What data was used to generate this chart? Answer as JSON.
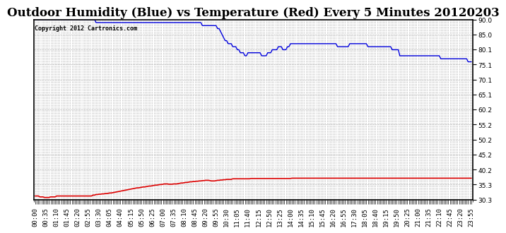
{
  "title": "Outdoor Humidity (Blue) vs Temperature (Red) Every 5 Minutes 20120203",
  "copyright_text": "Copyright 2012 Cartronics.com",
  "ylim_min": 30.3,
  "ylim_max": 90.0,
  "yticks": [
    30.3,
    35.3,
    40.2,
    45.2,
    50.2,
    55.2,
    60.2,
    65.1,
    70.1,
    75.1,
    80.1,
    85.0,
    90.0
  ],
  "background_color": "#ffffff",
  "grid_color": "#b0b0b0",
  "blue_color": "#0000dd",
  "red_color": "#dd0000",
  "title_fontsize": 12,
  "copyright_fontsize": 6,
  "tick_fontsize": 6.5,
  "label_every": 7,
  "humidity_data": [
    90,
    90,
    90,
    90,
    90,
    90,
    90,
    90,
    90,
    90,
    90,
    90,
    90,
    90,
    90,
    90,
    90,
    90,
    90,
    90,
    90,
    90,
    90,
    90,
    90,
    90,
    90,
    90,
    90,
    90,
    90,
    90,
    90,
    90,
    90,
    90,
    90,
    90,
    90,
    90,
    89,
    89,
    89,
    89,
    89,
    89,
    89,
    89,
    89,
    89,
    89,
    89,
    89,
    89,
    89,
    89,
    89,
    89,
    89,
    89,
    89,
    89,
    89,
    89,
    89,
    89,
    89,
    89,
    89,
    89,
    89,
    89,
    89,
    89,
    89,
    89,
    89,
    89,
    89,
    89,
    89,
    89,
    89,
    89,
    89,
    89,
    89,
    89,
    89,
    89,
    89,
    89,
    89,
    89,
    89,
    89,
    89,
    89,
    89,
    89,
    89,
    89,
    89,
    89,
    89,
    89,
    89,
    89,
    89,
    89,
    88,
    88,
    88,
    88,
    88,
    88,
    88,
    88,
    88,
    88,
    87,
    87,
    86,
    85,
    84,
    83,
    83,
    82,
    82,
    82,
    81,
    81,
    81,
    80,
    80,
    79,
    79,
    79,
    78,
    78,
    79,
    79,
    79,
    79,
    79,
    79,
    79,
    79,
    79,
    78,
    78,
    78,
    78,
    79,
    79,
    79,
    80,
    80,
    80,
    80,
    81,
    81,
    81,
    80,
    80,
    80,
    81,
    81,
    82,
    82,
    82,
    82,
    82,
    82,
    82,
    82,
    82,
    82,
    82,
    82,
    82,
    82,
    82,
    82,
    82,
    82,
    82,
    82,
    82,
    82,
    82,
    82,
    82,
    82,
    82,
    82,
    82,
    82,
    82,
    81,
    81,
    81,
    81,
    81,
    81,
    81,
    81,
    82,
    82,
    82,
    82,
    82,
    82,
    82,
    82,
    82,
    82,
    82,
    82,
    81,
    81,
    81,
    81,
    81,
    81,
    81,
    81,
    81,
    81,
    81,
    81,
    81,
    81,
    81,
    81,
    80,
    80,
    80,
    80,
    80,
    78,
    78,
    78,
    78,
    78,
    78,
    78,
    78,
    78,
    78,
    78,
    78,
    78,
    78,
    78,
    78,
    78,
    78,
    78,
    78,
    78,
    78,
    78,
    78,
    78,
    78,
    78,
    77,
    77,
    77,
    77,
    77,
    77,
    77,
    77,
    77,
    77,
    77,
    77,
    77,
    77,
    77,
    77,
    77,
    77,
    76,
    76,
    76,
    76,
    76
  ],
  "temp_data": [
    31.5,
    31.5,
    31.5,
    31.2,
    31.2,
    31.2,
    31.0,
    31.0,
    31.0,
    31.0,
    31.2,
    31.2,
    31.2,
    31.2,
    31.5,
    31.5,
    31.5,
    31.5,
    31.5,
    31.5,
    31.5,
    31.5,
    31.5,
    31.5,
    31.5,
    31.5,
    31.5,
    31.5,
    31.5,
    31.5,
    31.5,
    31.5,
    31.5,
    31.5,
    31.5,
    31.5,
    31.5,
    31.5,
    31.8,
    31.8,
    32.0,
    32.0,
    32.1,
    32.1,
    32.2,
    32.2,
    32.3,
    32.3,
    32.4,
    32.5,
    32.5,
    32.6,
    32.7,
    32.8,
    32.9,
    33.0,
    33.1,
    33.2,
    33.3,
    33.4,
    33.5,
    33.6,
    33.7,
    33.8,
    33.9,
    34.0,
    34.1,
    34.2,
    34.2,
    34.3,
    34.4,
    34.5,
    34.5,
    34.6,
    34.7,
    34.8,
    34.8,
    34.9,
    35.0,
    35.1,
    35.1,
    35.2,
    35.3,
    35.3,
    35.4,
    35.5,
    35.5,
    35.5,
    35.4,
    35.4,
    35.4,
    35.5,
    35.5,
    35.5,
    35.6,
    35.7,
    35.8,
    35.8,
    35.9,
    36.0,
    36.0,
    36.1,
    36.2,
    36.2,
    36.3,
    36.3,
    36.4,
    36.4,
    36.5,
    36.5,
    36.6,
    36.6,
    36.7,
    36.7,
    36.7,
    36.6,
    36.5,
    36.5,
    36.5,
    36.6,
    36.7,
    36.7,
    36.8,
    36.8,
    36.9,
    36.9,
    37.0,
    37.0,
    37.0,
    37.0,
    37.2,
    37.2,
    37.2,
    37.2,
    37.2,
    37.2,
    37.2,
    37.2,
    37.2,
    37.2,
    37.2,
    37.2,
    37.3,
    37.3,
    37.3,
    37.3,
    37.3,
    37.3,
    37.3,
    37.3,
    37.3,
    37.3,
    37.3,
    37.3,
    37.3,
    37.3,
    37.3,
    37.3,
    37.3,
    37.3,
    37.3,
    37.3,
    37.3,
    37.3,
    37.3,
    37.3,
    37.3,
    37.3,
    37.3,
    37.4,
    37.4,
    37.4,
    37.4,
    37.4,
    37.4,
    37.4,
    37.4,
    37.4,
    37.4,
    37.4,
    37.4,
    37.4,
    37.4,
    37.4,
    37.4,
    37.4,
    37.4,
    37.4,
    37.4,
    37.4,
    37.4,
    37.4,
    37.4,
    37.4,
    37.4,
    37.4,
    37.4,
    37.4,
    37.4,
    37.4,
    37.4,
    37.4,
    37.4,
    37.4,
    37.4,
    37.4,
    37.4,
    37.4,
    37.4,
    37.4,
    37.4,
    37.4,
    37.4,
    37.4,
    37.4,
    37.4,
    37.4,
    37.4,
    37.4,
    37.4,
    37.4,
    37.4,
    37.4,
    37.4,
    37.4,
    37.4,
    37.4,
    37.4,
    37.4,
    37.4,
    37.4,
    37.4,
    37.4,
    37.4,
    37.4,
    37.4,
    37.4,
    37.4,
    37.4,
    37.4,
    37.4,
    37.4,
    37.4,
    37.4,
    37.4,
    37.4,
    37.4,
    37.4,
    37.4,
    37.4,
    37.4,
    37.4,
    37.4,
    37.4,
    37.4,
    37.4,
    37.4,
    37.4,
    37.4,
    37.4,
    37.4,
    37.4,
    37.4,
    37.4,
    37.4,
    37.4,
    37.4,
    37.4,
    37.4,
    37.4,
    37.4,
    37.4,
    37.4,
    37.4,
    37.4,
    37.4,
    37.4,
    37.4,
    37.4,
    37.4,
    37.4,
    37.4,
    37.4,
    37.4,
    37.4,
    37.4,
    37.4,
    37.4,
    37.4,
    37.4,
    37.4,
    37.4,
    37.4,
    37.4,
    37.4,
    37.4,
    37.4,
    37.4,
    37.4,
    37.4
  ]
}
